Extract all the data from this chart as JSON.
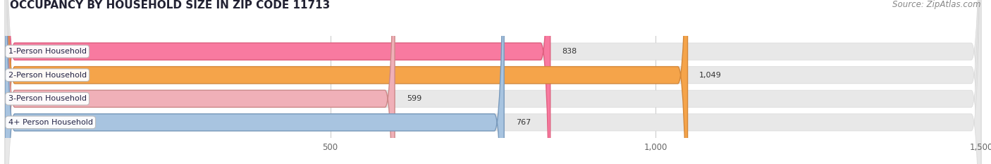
{
  "title": "OCCUPANCY BY HOUSEHOLD SIZE IN ZIP CODE 11713",
  "source": "Source: ZipAtlas.com",
  "categories": [
    "1-Person Household",
    "2-Person Household",
    "3-Person Household",
    "4+ Person Household"
  ],
  "values": [
    838,
    1049,
    599,
    767
  ],
  "bar_colors": [
    "#f87aa0",
    "#f5a44a",
    "#f0b0b8",
    "#a8c4e0"
  ],
  "bar_edge_colors": [
    "#e06080",
    "#d4883a",
    "#cc8888",
    "#7899bb"
  ],
  "bg_track_color": "#e8e8e8",
  "bg_track_edge": "#d8d8d8",
  "background_color": "#ffffff",
  "plot_bg_color": "#ffffff",
  "xlim": [
    0,
    1500
  ],
  "xticks": [
    500,
    1000,
    1500
  ],
  "bar_height": 0.72,
  "figsize": [
    14.06,
    2.33
  ],
  "dpi": 100,
  "label_fontsize": 8.0,
  "tick_fontsize": 8.5,
  "title_fontsize": 11,
  "source_fontsize": 8.5
}
